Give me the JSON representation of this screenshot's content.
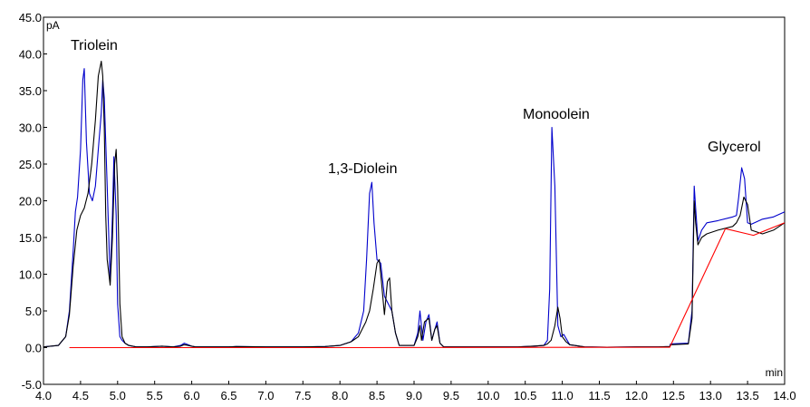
{
  "chart_data": {
    "type": "line",
    "title": "",
    "xlabel": "min",
    "ylabel": "pA",
    "xlim": [
      4.0,
      14.0
    ],
    "ylim": [
      -5.0,
      45.0
    ],
    "x_ticks": [
      "4.0",
      "4.5",
      "5.0",
      "5.5",
      "6.0",
      "6.5",
      "7.0",
      "7.5",
      "8.0",
      "8.5",
      "9.0",
      "9.5",
      "10.0",
      "10.5",
      "11.0",
      "11.5",
      "12.0",
      "12.5",
      "13.0",
      "13.5",
      "14.0"
    ],
    "y_ticks": [
      "-5.0",
      "0.0",
      "5.0",
      "10.0",
      "15.0",
      "20.0",
      "25.0",
      "30.0",
      "35.0",
      "40.0",
      "45.0"
    ],
    "grid": false,
    "annotations": [
      {
        "text": "Triolein",
        "x": 4.75,
        "y": 41.5
      },
      {
        "text": "1,3-Diolein",
        "x": 8.55,
        "y": 23.5
      },
      {
        "text": "Monoolein",
        "x": 10.85,
        "y": 31.5
      },
      {
        "text": "Glycerol",
        "x": 13.4,
        "y": 26.0
      }
    ],
    "series": [
      {
        "color": "#0000cc",
        "x": [
          4.0,
          4.2,
          4.3,
          4.35,
          4.4,
          4.43,
          4.46,
          4.5,
          4.53,
          4.55,
          4.58,
          4.62,
          4.66,
          4.7,
          4.74,
          4.78,
          4.8,
          4.82,
          4.86,
          4.9,
          4.93,
          4.95,
          4.98,
          5.0,
          5.03,
          5.06,
          5.1,
          5.15,
          5.25,
          5.4,
          5.6,
          5.75,
          5.85,
          5.9,
          5.95,
          6.0,
          6.05,
          6.2,
          6.5,
          6.6,
          7.0,
          7.5,
          7.8,
          8.0,
          8.15,
          8.25,
          8.32,
          8.36,
          8.4,
          8.43,
          8.46,
          8.5,
          8.55,
          8.6,
          8.65,
          8.7,
          8.75,
          8.8,
          9.0,
          9.05,
          9.08,
          9.12,
          9.16,
          9.2,
          9.24,
          9.28,
          9.31,
          9.35,
          9.4,
          9.6,
          10.0,
          10.4,
          10.6,
          10.75,
          10.8,
          10.83,
          10.86,
          10.9,
          10.94,
          10.98,
          11.02,
          11.1,
          11.3,
          11.6,
          12.0,
          12.3,
          12.45,
          12.46,
          12.7,
          12.75,
          12.78,
          12.8,
          12.83,
          12.88,
          12.95,
          13.1,
          13.3,
          13.35,
          13.38,
          13.42,
          13.46,
          13.5,
          13.55,
          13.7,
          13.85,
          14.0
        ],
        "y": [
          0.1,
          0.3,
          1.5,
          5.0,
          13.0,
          18.5,
          20.5,
          27.0,
          36.5,
          38.0,
          28.0,
          21.0,
          20.0,
          22.0,
          27.0,
          32.0,
          36.5,
          34.0,
          22.0,
          9.0,
          18.0,
          26.0,
          18.0,
          6.0,
          1.5,
          1.0,
          0.6,
          0.3,
          0.1,
          0.1,
          0.2,
          0.1,
          0.3,
          0.6,
          0.4,
          0.2,
          0.1,
          0.1,
          0.1,
          0.15,
          0.1,
          0.1,
          0.15,
          0.3,
          0.8,
          2.0,
          5.0,
          12.0,
          21.0,
          22.5,
          17.0,
          12.0,
          11.5,
          7.0,
          6.0,
          5.0,
          2.0,
          0.3,
          0.3,
          2.0,
          5.0,
          1.0,
          3.5,
          4.5,
          1.0,
          2.5,
          3.5,
          0.6,
          0.1,
          0.1,
          0.1,
          0.1,
          0.2,
          0.3,
          1.0,
          8.0,
          30.0,
          22.0,
          3.0,
          1.5,
          1.8,
          0.4,
          0.1,
          0.05,
          0.1,
          0.1,
          0.15,
          0.5,
          0.6,
          5.0,
          22.0,
          19.0,
          14.5,
          16.0,
          17.0,
          17.3,
          17.8,
          18.0,
          20.5,
          24.5,
          23.0,
          17.0,
          16.8,
          17.5,
          17.8,
          18.5
        ]
      },
      {
        "color": "#000000",
        "x": [
          4.0,
          4.2,
          4.3,
          4.35,
          4.4,
          4.45,
          4.5,
          4.55,
          4.6,
          4.65,
          4.7,
          4.74,
          4.78,
          4.8,
          4.82,
          4.84,
          4.86,
          4.9,
          4.93,
          4.96,
          4.98,
          5.0,
          5.03,
          5.06,
          5.1,
          5.15,
          5.25,
          5.4,
          5.6,
          5.75,
          5.85,
          5.9,
          5.95,
          6.0,
          6.05,
          6.2,
          6.5,
          6.6,
          7.0,
          7.5,
          7.8,
          8.0,
          8.15,
          8.25,
          8.3,
          8.35,
          8.4,
          8.45,
          8.5,
          8.53,
          8.56,
          8.6,
          8.64,
          8.67,
          8.7,
          8.75,
          8.8,
          9.0,
          9.05,
          9.08,
          9.1,
          9.14,
          9.2,
          9.24,
          9.28,
          9.31,
          9.35,
          9.4,
          9.6,
          10.0,
          10.4,
          10.6,
          10.75,
          10.8,
          10.85,
          10.9,
          10.94,
          10.97,
          11.0,
          11.05,
          11.1,
          11.3,
          11.6,
          12.0,
          12.3,
          12.45,
          12.46,
          12.7,
          12.75,
          12.78,
          12.8,
          12.83,
          12.88,
          12.95,
          13.1,
          13.3,
          13.35,
          13.4,
          13.45,
          13.5,
          13.55,
          13.7,
          13.85,
          14.0
        ],
        "y": [
          0.1,
          0.3,
          1.5,
          4.5,
          11.0,
          16.0,
          18.0,
          19.0,
          21.0,
          25.0,
          31.0,
          37.0,
          39.0,
          37.0,
          30.0,
          18.0,
          12.0,
          8.5,
          15.0,
          25.0,
          27.0,
          22.0,
          6.0,
          1.5,
          0.6,
          0.3,
          0.1,
          0.1,
          0.2,
          0.1,
          0.2,
          0.4,
          0.3,
          0.2,
          0.1,
          0.1,
          0.1,
          0.15,
          0.1,
          0.1,
          0.15,
          0.3,
          0.8,
          1.5,
          2.5,
          3.5,
          5.0,
          8.0,
          11.5,
          12.0,
          9.0,
          4.5,
          9.0,
          9.5,
          5.0,
          2.0,
          0.3,
          0.3,
          1.5,
          3.0,
          1.0,
          3.5,
          4.0,
          1.0,
          2.5,
          3.0,
          0.6,
          0.1,
          0.1,
          0.1,
          0.1,
          0.2,
          0.3,
          0.5,
          1.0,
          3.0,
          5.5,
          4.0,
          1.5,
          0.8,
          0.4,
          0.1,
          0.05,
          0.1,
          0.1,
          0.15,
          0.4,
          0.5,
          4.0,
          20.0,
          17.0,
          14.0,
          15.0,
          15.5,
          16.0,
          16.5,
          17.0,
          18.0,
          20.5,
          19.5,
          16.0,
          15.5,
          16.0,
          17.0
        ]
      },
      {
        "color": "#ff0000",
        "x": [
          4.35,
          8.1,
          12.45,
          13.2,
          13.58,
          14.0
        ],
        "y": [
          0.0,
          0.0,
          0.05,
          16.2,
          15.3,
          17.0
        ]
      }
    ]
  }
}
